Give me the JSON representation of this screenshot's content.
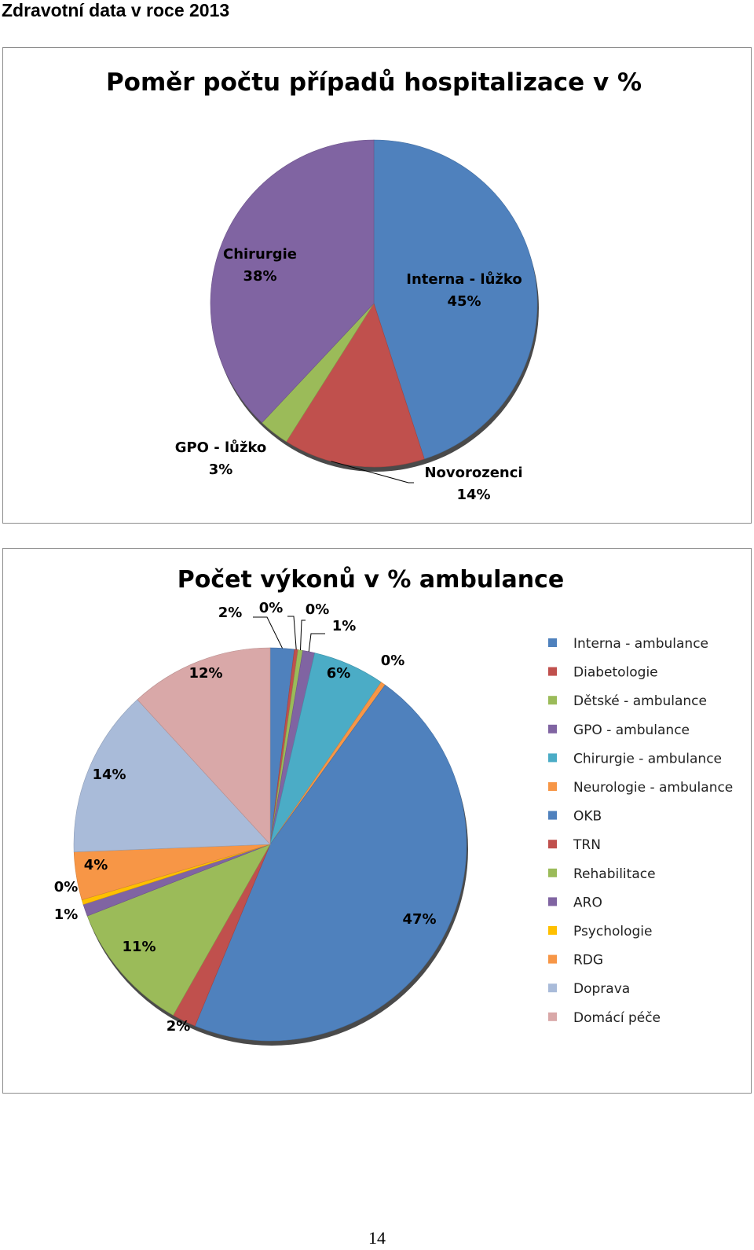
{
  "page": {
    "heading": "Zdravotní data v roce 2013",
    "page_number": "14"
  },
  "chart_data": [
    {
      "type": "pie",
      "title": "Poměr počtu případů hospitalizace v %",
      "slices": [
        {
          "name": "Interna - lůžko",
          "value": 45,
          "label": "45%",
          "color": "#4f81bd"
        },
        {
          "name": "Novorozenci",
          "value": 14,
          "label": "14%",
          "color": "#c0504d"
        },
        {
          "name": "GPO - lůžko",
          "value": 3,
          "label": "3%",
          "color": "#9bbb59"
        },
        {
          "name": "Chirurgie",
          "value": 38,
          "label": "38%",
          "color": "#8064a2"
        }
      ],
      "legend": false
    },
    {
      "type": "pie",
      "title": "Počet výkonů v % ambulance",
      "legend_position": "right",
      "slices": [
        {
          "name": "Interna - ambulance",
          "value": 2,
          "label": "2%",
          "color": "#4f81bd"
        },
        {
          "name": "Diabetologie",
          "value": 0.3,
          "label": "0%",
          "color": "#c0504d"
        },
        {
          "name": "Dětské - ambulance",
          "value": 0.4,
          "label": "0%",
          "color": "#9bbb59"
        },
        {
          "name": "GPO - ambulance",
          "value": 1,
          "label": "1%",
          "color": "#8064a2"
        },
        {
          "name": "Chirurgie - ambulance",
          "value": 6,
          "label": "6%",
          "color": "#4bacc6"
        },
        {
          "name": "Neurologie - ambulance",
          "value": 0.4,
          "label": "0%",
          "color": "#f79646"
        },
        {
          "name": "OKB",
          "value": 47,
          "label": "47%",
          "color": "#4f81bd"
        },
        {
          "name": "TRN",
          "value": 2,
          "label": "2%",
          "color": "#c0504d"
        },
        {
          "name": "Rehabilitace",
          "value": 11,
          "label": "11%",
          "color": "#9bbb59"
        },
        {
          "name": "ARO",
          "value": 1,
          "label": "1%",
          "color": "#8064a2"
        },
        {
          "name": "Psychologie",
          "value": 0.4,
          "label": "0%",
          "color": "#ffc000"
        },
        {
          "name": "RDG",
          "value": 4,
          "label": "4%",
          "color": "#f79646"
        },
        {
          "name": "Doprava",
          "value": 14,
          "label": "14%",
          "color": "#a9bbd9"
        },
        {
          "name": "Domácí péče",
          "value": 12,
          "label": "12%",
          "color": "#d9a8a8"
        }
      ]
    }
  ]
}
